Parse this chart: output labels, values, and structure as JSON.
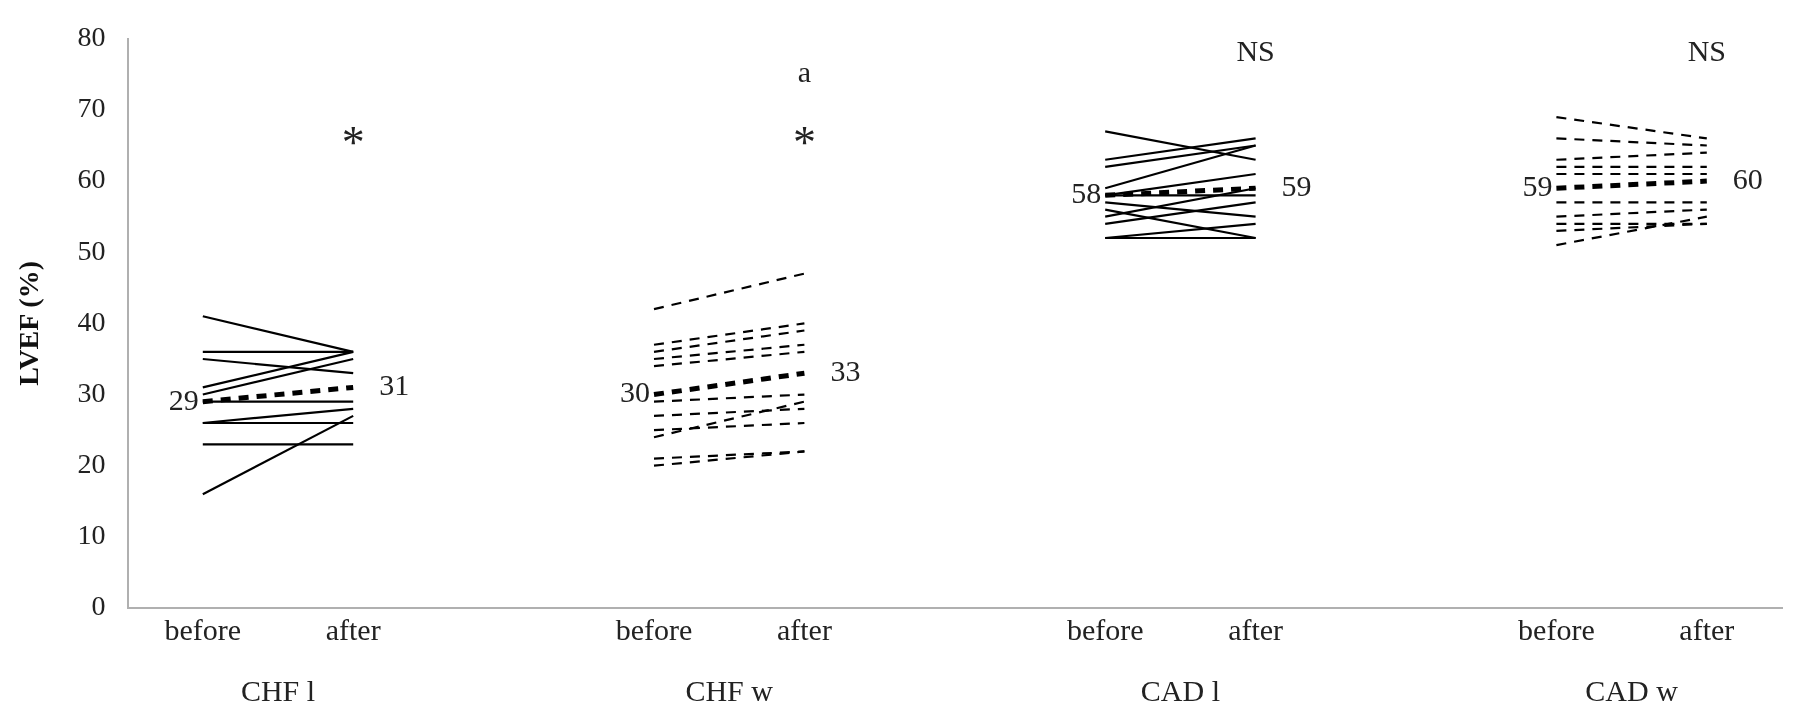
{
  "chart_data": {
    "type": "line",
    "ylabel": "LVEF (%)",
    "categories": [
      "before",
      "after",
      null,
      "before",
      "after",
      null,
      "before",
      "after",
      null,
      "before",
      "after"
    ],
    "ylim": [
      0,
      80
    ],
    "yticks": [
      0,
      10,
      20,
      30,
      40,
      50,
      60,
      70,
      80
    ],
    "grid": false,
    "legend": false,
    "marker": "none",
    "annotations": [
      "*",
      "*",
      "a",
      "NS",
      "NS",
      "CHF l",
      "CHF w",
      "CAD l",
      "CAD w"
    ],
    "series": [
      {
        "color": "#000000",
        "line_style": "solid",
        "values": [
          41,
          36,
          null,
          null,
          null,
          null,
          null,
          null,
          null,
          null,
          null
        ]
      },
      {
        "color": "#000000",
        "line_style": "solid",
        "values": [
          36,
          36,
          null,
          null,
          null,
          null,
          null,
          null,
          null,
          null,
          null
        ]
      },
      {
        "color": "#000000",
        "line_style": "solid",
        "values": [
          35,
          33,
          null,
          null,
          null,
          null,
          null,
          null,
          null,
          null,
          null
        ]
      },
      {
        "color": "#000000",
        "line_style": "solid",
        "values": [
          31,
          36,
          null,
          null,
          null,
          null,
          null,
          null,
          null,
          null,
          null
        ]
      },
      {
        "color": "#000000",
        "line_style": "solid",
        "values": [
          30,
          35,
          null,
          null,
          null,
          null,
          null,
          null,
          null,
          null,
          null
        ]
      },
      {
        "color": "#000000",
        "line_style": "solid",
        "values": [
          29,
          29,
          null,
          null,
          null,
          null,
          null,
          null,
          null,
          null,
          null
        ]
      },
      {
        "color": "#000000",
        "line_style": "solid",
        "values": [
          26,
          26,
          null,
          null,
          null,
          null,
          null,
          null,
          null,
          null,
          null
        ]
      },
      {
        "color": "#000000",
        "line_style": "solid",
        "values": [
          26,
          28,
          null,
          null,
          null,
          null,
          null,
          null,
          null,
          null,
          null
        ]
      },
      {
        "color": "#000000",
        "line_style": "solid",
        "values": [
          23,
          23,
          null,
          null,
          null,
          null,
          null,
          null,
          null,
          null,
          null
        ]
      },
      {
        "color": "#000000",
        "line_style": "solid",
        "values": [
          16,
          27,
          null,
          null,
          null,
          null,
          null,
          null,
          null,
          null,
          null
        ]
      },
      {
        "color": "#000000",
        "line_style": "dashed",
        "values": [
          29,
          31,
          null,
          null,
          null,
          null,
          null,
          null,
          null,
          null,
          null
        ],
        "value_labels": [
          "29",
          "31",
          null,
          null,
          null,
          null,
          null,
          null,
          null,
          null,
          null
        ]
      },
      {
        "color": "#000000",
        "line_style": "dashed",
        "values": [
          null,
          null,
          null,
          42,
          47,
          null,
          null,
          null,
          null,
          null,
          null
        ]
      },
      {
        "color": "#000000",
        "line_style": "dashed",
        "values": [
          null,
          null,
          null,
          37,
          40,
          null,
          null,
          null,
          null,
          null,
          null
        ]
      },
      {
        "color": "#000000",
        "line_style": "dashed",
        "values": [
          null,
          null,
          null,
          36,
          39,
          null,
          null,
          null,
          null,
          null,
          null
        ]
      },
      {
        "color": "#000000",
        "line_style": "dashed",
        "values": [
          null,
          null,
          null,
          35,
          37,
          null,
          null,
          null,
          null,
          null,
          null
        ]
      },
      {
        "color": "#000000",
        "line_style": "dashed",
        "values": [
          null,
          null,
          null,
          34,
          36,
          null,
          null,
          null,
          null,
          null,
          null
        ]
      },
      {
        "color": "#000000",
        "line_style": "dashed",
        "values": [
          null,
          null,
          null,
          29,
          30,
          null,
          null,
          null,
          null,
          null,
          null
        ]
      },
      {
        "color": "#000000",
        "line_style": "dashed",
        "values": [
          null,
          null,
          null,
          27,
          28,
          null,
          null,
          null,
          null,
          null,
          null
        ]
      },
      {
        "color": "#000000",
        "line_style": "dashed",
        "values": [
          null,
          null,
          null,
          25,
          26,
          null,
          null,
          null,
          null,
          null,
          null
        ]
      },
      {
        "color": "#000000",
        "line_style": "dashed",
        "values": [
          null,
          null,
          null,
          24,
          29,
          null,
          null,
          null,
          null,
          null,
          null
        ]
      },
      {
        "color": "#000000",
        "line_style": "dashed",
        "values": [
          null,
          null,
          null,
          21,
          22,
          null,
          null,
          null,
          null,
          null,
          null
        ]
      },
      {
        "color": "#000000",
        "line_style": "dashed",
        "values": [
          null,
          null,
          null,
          20,
          22,
          null,
          null,
          null,
          null,
          null,
          null
        ]
      },
      {
        "color": "#000000",
        "line_style": "dashed",
        "values": [
          null,
          null,
          null,
          30,
          33,
          null,
          null,
          null,
          null,
          null,
          null
        ],
        "value_labels": [
          null,
          null,
          null,
          "30",
          "33",
          null,
          null,
          null,
          null,
          null,
          null
        ]
      },
      {
        "color": "#000000",
        "line_style": "solid",
        "values": [
          null,
          null,
          null,
          null,
          null,
          null,
          67,
          63,
          null,
          null,
          null
        ]
      },
      {
        "color": "#000000",
        "line_style": "solid",
        "values": [
          null,
          null,
          null,
          null,
          null,
          null,
          63,
          66,
          null,
          null,
          null
        ]
      },
      {
        "color": "#000000",
        "line_style": "solid",
        "values": [
          null,
          null,
          null,
          null,
          null,
          null,
          62,
          65,
          null,
          null,
          null
        ]
      },
      {
        "color": "#000000",
        "line_style": "solid",
        "values": [
          null,
          null,
          null,
          null,
          null,
          null,
          59,
          65,
          null,
          null,
          null
        ]
      },
      {
        "color": "#000000",
        "line_style": "solid",
        "values": [
          null,
          null,
          null,
          null,
          null,
          null,
          58,
          61,
          null,
          null,
          null
        ]
      },
      {
        "color": "#000000",
        "line_style": "solid",
        "values": [
          null,
          null,
          null,
          null,
          null,
          null,
          58,
          58,
          null,
          null,
          null
        ]
      },
      {
        "color": "#000000",
        "line_style": "solid",
        "values": [
          null,
          null,
          null,
          null,
          null,
          null,
          57,
          55,
          null,
          null,
          null
        ]
      },
      {
        "color": "#000000",
        "line_style": "solid",
        "values": [
          null,
          null,
          null,
          null,
          null,
          null,
          56,
          52,
          null,
          null,
          null
        ]
      },
      {
        "color": "#000000",
        "line_style": "solid",
        "values": [
          null,
          null,
          null,
          null,
          null,
          null,
          55,
          59,
          null,
          null,
          null
        ]
      },
      {
        "color": "#000000",
        "line_style": "solid",
        "values": [
          null,
          null,
          null,
          null,
          null,
          null,
          54,
          57,
          null,
          null,
          null
        ]
      },
      {
        "color": "#000000",
        "line_style": "solid",
        "values": [
          null,
          null,
          null,
          null,
          null,
          null,
          52,
          54,
          null,
          null,
          null
        ]
      },
      {
        "color": "#000000",
        "line_style": "solid",
        "values": [
          null,
          null,
          null,
          null,
          null,
          null,
          52,
          52,
          null,
          null,
          null
        ]
      },
      {
        "color": "#000000",
        "line_style": "dashed",
        "values": [
          null,
          null,
          null,
          null,
          null,
          null,
          58,
          59,
          null,
          null,
          null
        ],
        "value_labels": [
          null,
          null,
          null,
          null,
          null,
          null,
          "58",
          "59",
          null,
          null,
          null
        ]
      },
      {
        "color": "#000000",
        "line_style": "dashed",
        "values": [
          null,
          null,
          null,
          null,
          null,
          null,
          null,
          null,
          null,
          69,
          66
        ]
      },
      {
        "color": "#000000",
        "line_style": "dashed",
        "values": [
          null,
          null,
          null,
          null,
          null,
          null,
          null,
          null,
          null,
          66,
          65
        ]
      },
      {
        "color": "#000000",
        "line_style": "dashed",
        "values": [
          null,
          null,
          null,
          null,
          null,
          null,
          null,
          null,
          null,
          63,
          64
        ]
      },
      {
        "color": "#000000",
        "line_style": "dashed",
        "values": [
          null,
          null,
          null,
          null,
          null,
          null,
          null,
          null,
          null,
          62,
          62
        ]
      },
      {
        "color": "#000000",
        "line_style": "dashed",
        "values": [
          null,
          null,
          null,
          null,
          null,
          null,
          null,
          null,
          null,
          61,
          61
        ]
      },
      {
        "color": "#000000",
        "line_style": "dashed",
        "values": [
          null,
          null,
          null,
          null,
          null,
          null,
          null,
          null,
          null,
          57,
          57
        ]
      },
      {
        "color": "#000000",
        "line_style": "dashed",
        "values": [
          null,
          null,
          null,
          null,
          null,
          null,
          null,
          null,
          null,
          55,
          56
        ]
      },
      {
        "color": "#000000",
        "line_style": "dashed",
        "values": [
          null,
          null,
          null,
          null,
          null,
          null,
          null,
          null,
          null,
          54,
          54
        ]
      },
      {
        "color": "#000000",
        "line_style": "dashed",
        "values": [
          null,
          null,
          null,
          null,
          null,
          null,
          null,
          null,
          null,
          53,
          54
        ]
      },
      {
        "color": "#000000",
        "line_style": "dashed",
        "values": [
          null,
          null,
          null,
          null,
          null,
          null,
          null,
          null,
          null,
          51,
          55
        ]
      },
      {
        "color": "#000000",
        "line_style": "dashed",
        "values": [
          null,
          null,
          null,
          null,
          null,
          null,
          null,
          null,
          null,
          59,
          60
        ],
        "value_labels": [
          null,
          null,
          null,
          null,
          null,
          null,
          null,
          null,
          null,
          "59",
          "60"
        ]
      }
    ]
  }
}
